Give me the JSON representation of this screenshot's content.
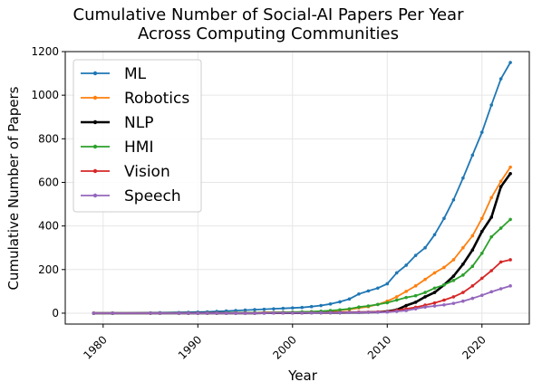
{
  "chart_data": {
    "type": "line",
    "title": [
      "Cumulative Number of Social-AI Papers Per Year",
      "Across Computing Communities"
    ],
    "xlabel": "Year",
    "ylabel": "Cumulative Number of Papers",
    "xlim": [
      1976,
      2025
    ],
    "ylim": [
      -50,
      1200
    ],
    "xticks": [
      1980,
      1990,
      2000,
      2010,
      2020
    ],
    "yticks": [
      0,
      200,
      400,
      600,
      800,
      1000,
      1200
    ],
    "grid": true,
    "legend_position": "upper-left",
    "x": [
      1979,
      1981,
      1985,
      1986,
      1988,
      1989,
      1990,
      1991,
      1992,
      1993,
      1994,
      1995,
      1996,
      1997,
      1998,
      1999,
      2000,
      2001,
      2002,
      2003,
      2004,
      2005,
      2006,
      2007,
      2008,
      2009,
      2010,
      2011,
      2012,
      2013,
      2014,
      2015,
      2016,
      2017,
      2018,
      2019,
      2020,
      2021,
      2022,
      2023
    ],
    "series": [
      {
        "name": "ML",
        "color": "#1f77b4",
        "values": [
          0,
          0,
          1,
          2,
          3,
          4,
          5,
          6,
          8,
          10,
          12,
          14,
          16,
          18,
          20,
          22,
          24,
          26,
          30,
          35,
          42,
          52,
          65,
          88,
          102,
          115,
          135,
          185,
          220,
          265,
          300,
          360,
          435,
          520,
          620,
          725,
          830,
          955,
          1075,
          1150
        ]
      },
      {
        "name": "Robotics",
        "color": "#ff7f0e",
        "values": [
          0,
          0,
          0,
          0,
          0,
          0,
          0,
          1,
          1,
          1,
          2,
          2,
          2,
          3,
          3,
          4,
          4,
          5,
          6,
          8,
          10,
          13,
          17,
          24,
          30,
          40,
          55,
          75,
          100,
          125,
          155,
          185,
          210,
          245,
          300,
          355,
          435,
          530,
          605,
          670
        ]
      },
      {
        "name": "NLP",
        "color": "#000000",
        "values": [
          0,
          0,
          0,
          0,
          0,
          0,
          0,
          0,
          0,
          0,
          0,
          0,
          0,
          1,
          1,
          1,
          1,
          1,
          2,
          2,
          2,
          2,
          3,
          3,
          4,
          5,
          8,
          15,
          35,
          50,
          75,
          95,
          130,
          170,
          225,
          290,
          375,
          440,
          580,
          640
        ]
      },
      {
        "name": "HMI",
        "color": "#2ca02c",
        "values": [
          0,
          0,
          0,
          0,
          0,
          0,
          0,
          0,
          0,
          1,
          1,
          1,
          2,
          2,
          3,
          4,
          5,
          6,
          7,
          9,
          12,
          15,
          20,
          28,
          33,
          40,
          48,
          60,
          72,
          80,
          95,
          115,
          130,
          150,
          175,
          215,
          275,
          350,
          390,
          430
        ]
      },
      {
        "name": "Vision",
        "color": "#d62728",
        "values": [
          0,
          0,
          0,
          0,
          0,
          0,
          0,
          0,
          0,
          0,
          0,
          0,
          0,
          1,
          1,
          1,
          1,
          1,
          2,
          2,
          3,
          3,
          4,
          5,
          5,
          6,
          7,
          13,
          20,
          27,
          37,
          47,
          60,
          75,
          95,
          125,
          160,
          195,
          235,
          245
        ]
      },
      {
        "name": "Speech",
        "color": "#9467bd",
        "values": [
          0,
          0,
          0,
          0,
          0,
          0,
          0,
          0,
          0,
          0,
          0,
          0,
          0,
          0,
          1,
          1,
          1,
          1,
          1,
          2,
          2,
          2,
          3,
          3,
          4,
          4,
          5,
          8,
          12,
          20,
          28,
          33,
          38,
          45,
          55,
          68,
          82,
          98,
          112,
          125
        ]
      }
    ]
  }
}
